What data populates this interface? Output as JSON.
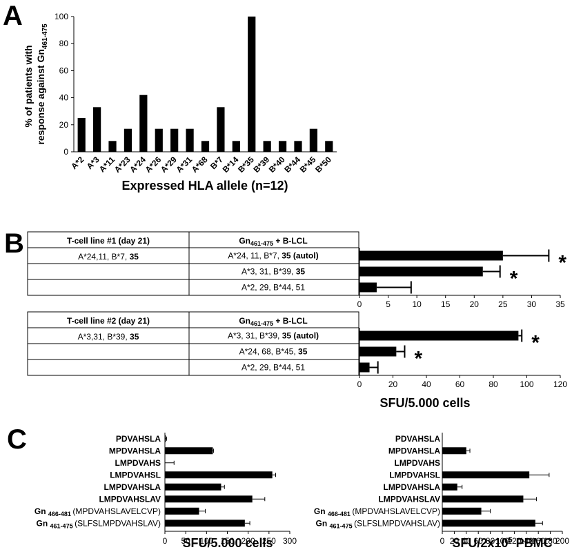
{
  "panels": {
    "a": "A",
    "b": "B",
    "c": "C"
  },
  "chart_data": [
    {
      "id": "A",
      "type": "bar",
      "ylabel_line1": "% of patients with",
      "ylabel_line2": "response against Gn",
      "ylabel_sub": "461-475",
      "xlabel": "Expressed HLA allele (n=12)",
      "ylim": [
        0,
        100
      ],
      "yticks": [
        0,
        20,
        40,
        60,
        80,
        100
      ],
      "categories": [
        "A*2",
        "A*3",
        "A*11",
        "A*23",
        "A*24",
        "A*26",
        "A*29",
        "A*31",
        "A*68",
        "B*7",
        "B*14",
        "B*35",
        "B*39",
        "B*40",
        "B*44",
        "B*45",
        "B*50"
      ],
      "values": [
        25,
        33,
        8,
        17,
        42,
        17,
        17,
        17,
        8,
        33,
        8,
        100,
        8,
        8,
        8,
        17,
        8
      ],
      "color": "#000000"
    },
    {
      "id": "B1",
      "type": "bar",
      "orientation": "horizontal",
      "table_headers": [
        "T-cell line #1 (day 21)",
        "Gn",
        "461-475",
        " + B-LCL"
      ],
      "tcell": [
        "A*24,11, B*7, ",
        "35"
      ],
      "rows": [
        {
          "label": "A*24, 11, B*7, ",
          "label_bold": "35 (autol)",
          "value": 25,
          "error": 8,
          "star": "*"
        },
        {
          "label": "A*3, 31, B*39, ",
          "label_bold": "35",
          "value": 21.5,
          "error": 3,
          "star": "*"
        },
        {
          "label": "A*2, 29, B*44, 51",
          "label_bold": "",
          "value": 3,
          "error": 6,
          "star": ""
        }
      ],
      "xlim": [
        0,
        35
      ],
      "xticks": [
        0,
        5,
        10,
        15,
        20,
        25,
        30,
        35
      ]
    },
    {
      "id": "B2",
      "type": "bar",
      "orientation": "horizontal",
      "table_headers": [
        "T-cell line #2 (day 21)",
        "Gn",
        "461-475",
        " + B-LCL"
      ],
      "tcell": [
        "A*3,31, B*39, ",
        "35"
      ],
      "rows": [
        {
          "label": "A*3, 31, B*39, ",
          "label_bold": "35 (autol)",
          "value": 95,
          "error": 2,
          "star": "*"
        },
        {
          "label": "A*24, 68, B*45, ",
          "label_bold": "35",
          "value": 22,
          "error": 5,
          "star": "*"
        },
        {
          "label": "A*2, 29, B*44, 51",
          "label_bold": "",
          "value": 6,
          "error": 5,
          "star": ""
        }
      ],
      "xlim": [
        0,
        120
      ],
      "xticks": [
        0,
        20,
        40,
        60,
        80,
        100,
        120
      ],
      "xlabel": "SFU/5.000 cells"
    },
    {
      "id": "C1",
      "type": "bar",
      "orientation": "horizontal",
      "categories": [
        "PDVAHSLA",
        "MPDVAHSLA",
        "LMPDVAHS",
        "LMPDVAHSL",
        "LMPDVAHSLA",
        "LMPDVAHSLAV",
        "Gn 466-481 (MPDVAHSLAVELCVP)",
        "Gn 461-475 (SLFSLMPDVAHSLAV)"
      ],
      "values": [
        2,
        115,
        0,
        258,
        135,
        210,
        82,
        192
      ],
      "errors": [
        2,
        2,
        22,
        8,
        8,
        30,
        15,
        12
      ],
      "xlim": [
        0,
        300
      ],
      "xticks": [
        0,
        50,
        100,
        150,
        200,
        250,
        300
      ],
      "xlabel": "SFU/5.000 cells"
    },
    {
      "id": "C2",
      "type": "bar",
      "orientation": "horizontal",
      "categories": [
        "PDVAHSLA",
        "MPDVAHSLA",
        "LMPDVAHS",
        "LMPDVAHSL",
        "LMPDVAHSLA",
        "LMPDVAHSLAV",
        "Gn 466-481 (MPDVAHSLAVELCVP)",
        "Gn 461-475 (SLFSLMPDVAHSLAV)"
      ],
      "values": [
        0,
        40,
        0,
        145,
        25,
        135,
        65,
        155
      ],
      "errors": [
        0,
        6,
        0,
        33,
        8,
        22,
        15,
        12
      ],
      "xlim": [
        0,
        200
      ],
      "xticks": [
        0,
        20,
        40,
        60,
        80,
        100,
        120,
        140,
        160,
        180,
        200
      ],
      "xlabel": "SFU/2x10",
      "xlabel_sup": "5",
      "xlabel_tail": " PBMC"
    }
  ],
  "peptide_labels": [
    {
      "bold": "PDVAHSLA"
    },
    {
      "bold": "MPDVAHSLA"
    },
    {
      "bold": "LMPDVAHS"
    },
    {
      "bold": "LMPDVAHSL"
    },
    {
      "bold": "LMPDVAHSLA"
    },
    {
      "bold": "LMPDVAHSLAV"
    },
    {
      "prefix": "Gn",
      "sub": "466-481",
      "seq": "(MPDVAHSLAVELCVP)"
    },
    {
      "prefix": "Gn",
      "sub": "461-475",
      "seq": "(SLFSLMPDVAHSLAV)"
    }
  ]
}
